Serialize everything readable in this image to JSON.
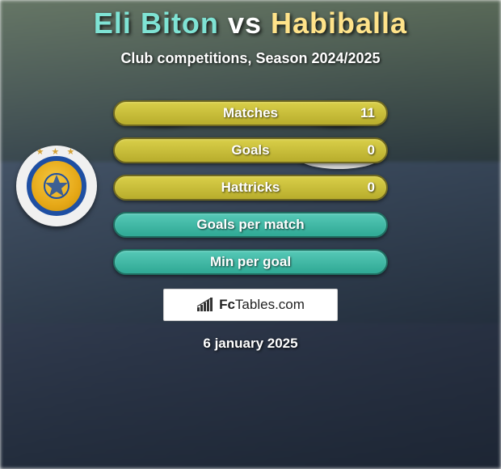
{
  "title": {
    "left": "Eli Biton",
    "mid": "vs",
    "right": "Habiballa",
    "left_color": "#7fe3d4",
    "right_color": "#ffe38a"
  },
  "subtitle": "Club competitions, Season 2024/2025",
  "pills": {
    "yellow_bg": "linear-gradient(180deg,#d9cf49,#b8ad2c)",
    "yellow_border": "#6f6820",
    "teal_bg": "linear-gradient(180deg,#56c9b7,#2fa894)",
    "teal_border": "#1f6e61"
  },
  "rows": [
    {
      "label": "Matches",
      "value": "11",
      "show_value": true,
      "left_oval": true,
      "right_oval": true
    },
    {
      "label": "Goals",
      "value": "0",
      "show_value": true,
      "left_oval": false,
      "right_oval": true
    },
    {
      "label": "Hattricks",
      "value": "0",
      "show_value": true,
      "left_oval": false,
      "right_oval": false
    },
    {
      "label": "Goals per match",
      "value": "",
      "show_value": false,
      "left_oval": false,
      "right_oval": false
    },
    {
      "label": "Min per goal",
      "value": "",
      "show_value": false,
      "left_oval": false,
      "right_oval": false
    }
  ],
  "footer_brand": {
    "prefix": "Fc",
    "rest": "Tables.com"
  },
  "date": "6 january 2025",
  "club": {
    "name": "maccabi-tel-aviv",
    "primary": "#e6a817",
    "ring": "#1e4fa3"
  }
}
